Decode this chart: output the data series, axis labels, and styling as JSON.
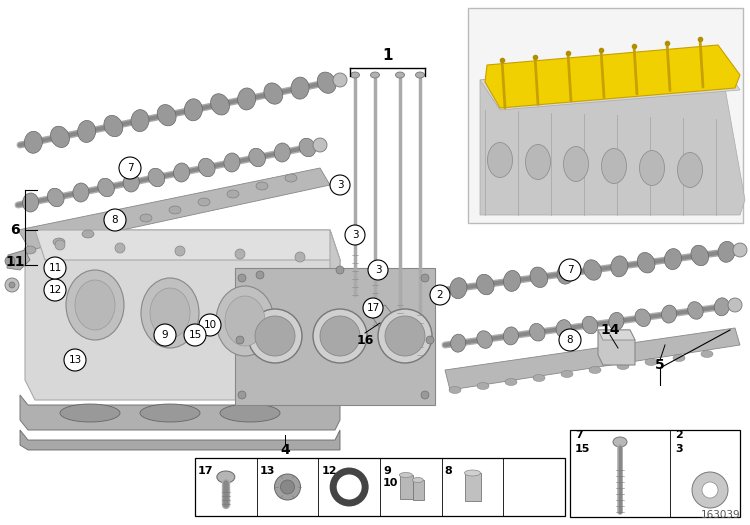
{
  "bg_color": "#ffffff",
  "diagram_id": "163039",
  "yellow": "#f0d000",
  "gray1": "#aaaaaa",
  "gray2": "#c0c0c0",
  "gray3": "#888888",
  "gray4": "#d5d5d5",
  "dark_gray": "#666666",
  "black": "#000000",
  "inset_bg": "#f5f5f5",
  "inset_border": "#bbbbbb",
  "gasket_color": "#909090",
  "head_color": "#d8d8d8",
  "cam_dark": "#999999",
  "cam_light": "#c8c8c8"
}
